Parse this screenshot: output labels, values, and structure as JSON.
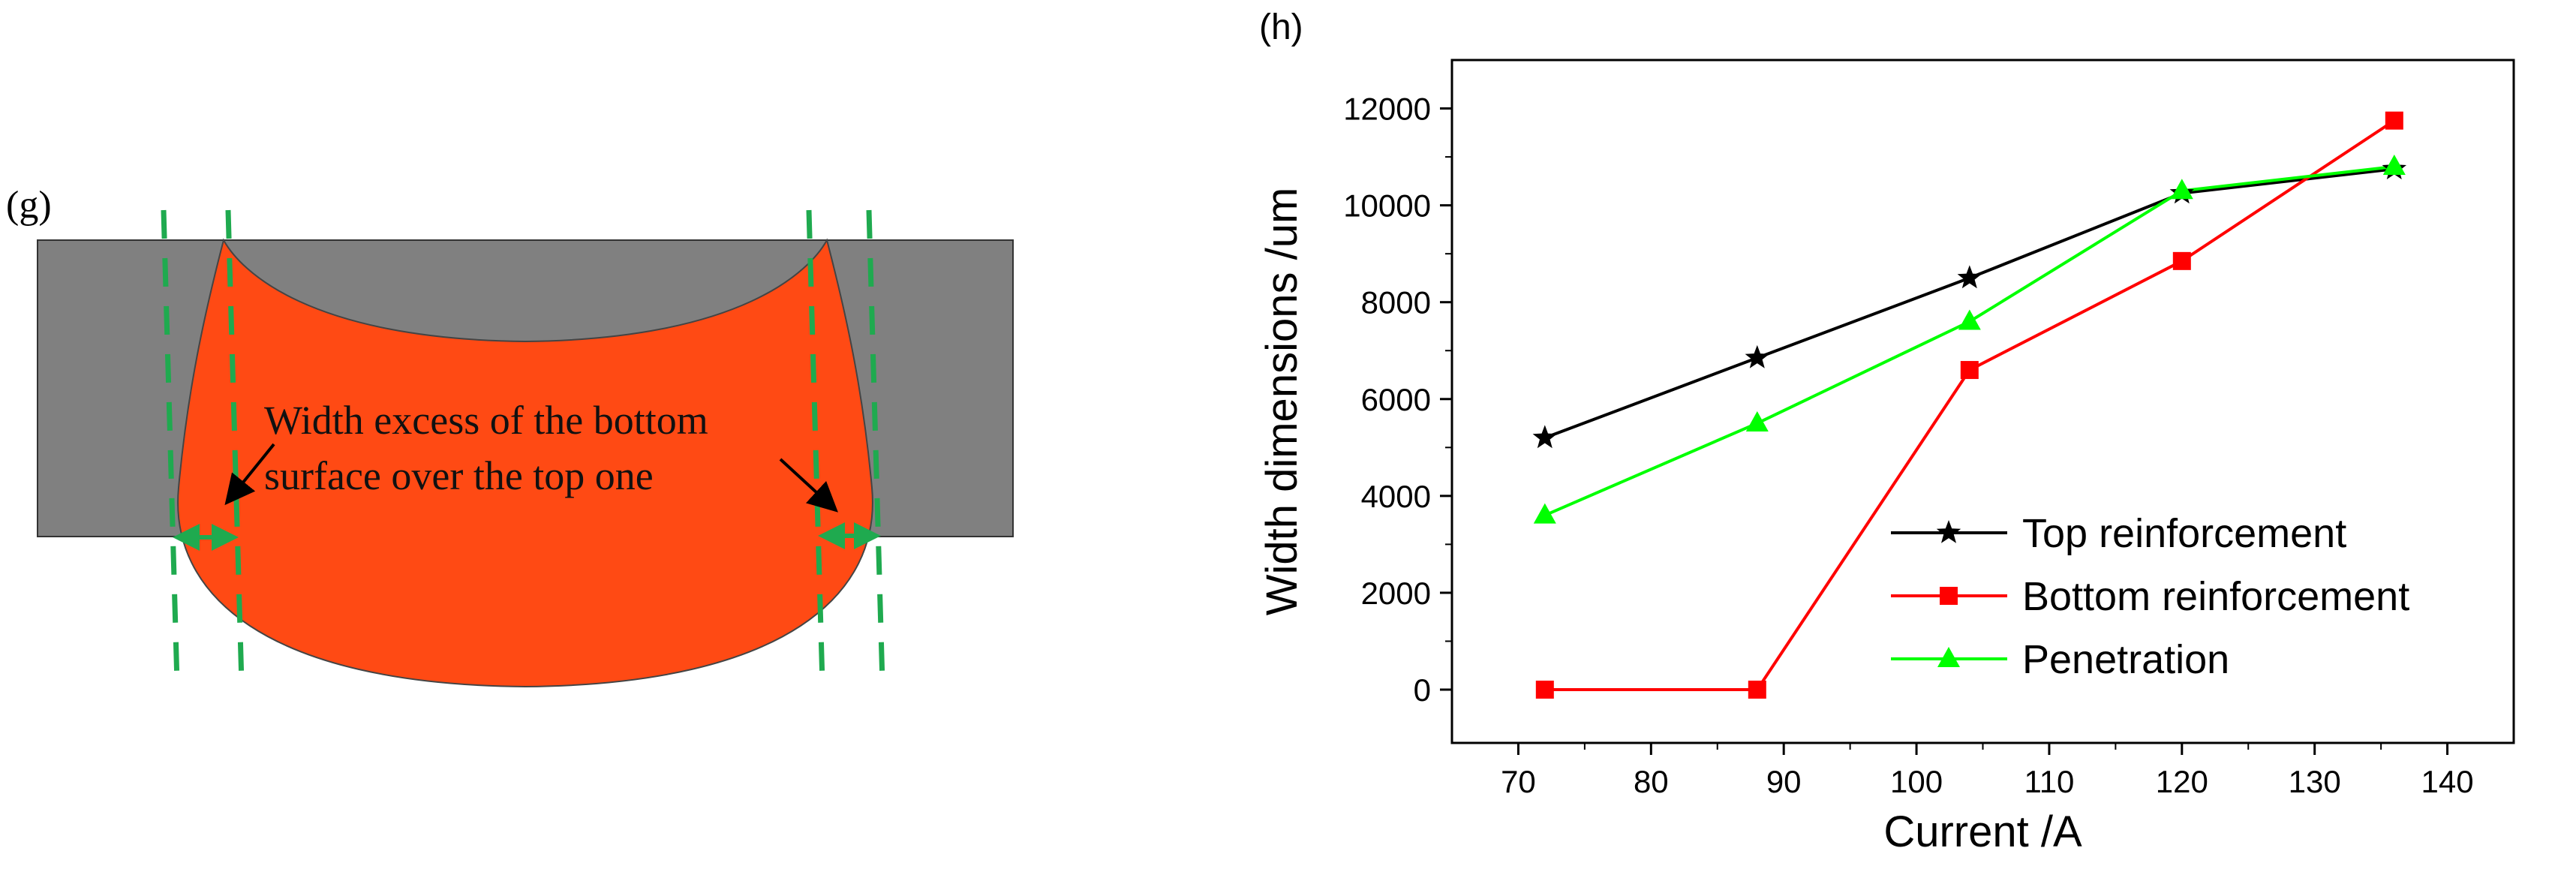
{
  "figure_g": {
    "panel_label": "(g)",
    "annotation_line1": "Width excess of the bottom",
    "annotation_line2": "surface over the top one",
    "colors": {
      "plate": "#808080",
      "weld": "#ff4a14",
      "guide": "#1faa4f",
      "arrow": "#000000"
    }
  },
  "chart_data": {
    "type": "line",
    "panel_label": "(h)",
    "title": "",
    "xlabel": "Current /A",
    "ylabel": "Width dimensions /um",
    "xlim": [
      65,
      145
    ],
    "ylim": [
      -1100,
      13000
    ],
    "x_ticks": [
      70,
      80,
      90,
      100,
      110,
      120,
      130,
      140
    ],
    "y_ticks": [
      0,
      2000,
      4000,
      6000,
      8000,
      10000,
      12000
    ],
    "grid": false,
    "legend_position": "lower-right",
    "series": [
      {
        "name": "Top reinforcement",
        "color": "#000000",
        "marker": "star",
        "x": [
          72,
          88,
          104,
          120,
          136
        ],
        "y": [
          5200,
          6850,
          8500,
          10250,
          10750
        ]
      },
      {
        "name": "Bottom reinforcement",
        "color": "#ff0000",
        "marker": "square",
        "x": [
          72,
          88,
          104,
          120,
          136
        ],
        "y": [
          0,
          0,
          6600,
          8850,
          11750
        ]
      },
      {
        "name": "Penetration",
        "color": "#00ff00",
        "marker": "triangle",
        "x": [
          72,
          88,
          104,
          120,
          136
        ],
        "y": [
          3600,
          5500,
          7600,
          10300,
          10800
        ]
      }
    ]
  }
}
